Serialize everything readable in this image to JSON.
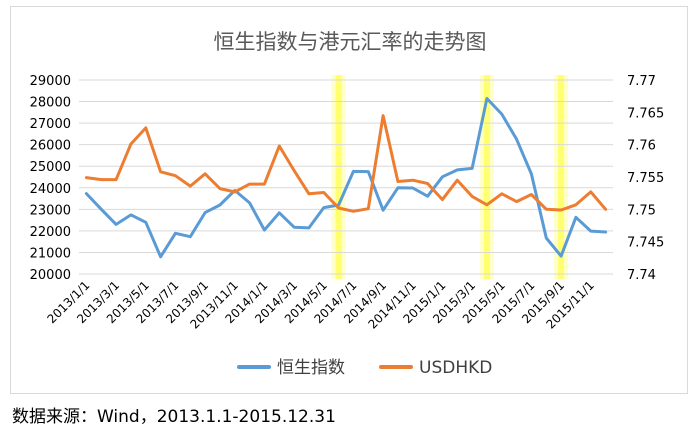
{
  "chart_data": {
    "type": "line",
    "title": "恒生指数与港元汇率的走势图",
    "x_tick_labels": [
      "2013/1/1",
      "2013/3/1",
      "2013/5/1",
      "2013/7/1",
      "2013/9/1",
      "2013/11/1",
      "2014/1/1",
      "2014/3/1",
      "2014/5/1",
      "2014/7/1",
      "2014/9/1",
      "2014/11/1",
      "2015/1/1",
      "2015/3/1",
      "2015/5/1",
      "2015/7/1",
      "2015/9/1",
      "2015/11/1"
    ],
    "x": [
      "2013/1",
      "2013/2",
      "2013/3",
      "2013/4",
      "2013/5",
      "2013/6",
      "2013/7",
      "2013/8",
      "2013/9",
      "2013/10",
      "2013/11",
      "2013/12",
      "2014/1",
      "2014/2",
      "2014/3",
      "2014/4",
      "2014/5",
      "2014/6",
      "2014/7",
      "2014/8",
      "2014/9",
      "2014/10",
      "2014/11",
      "2014/12",
      "2015/1",
      "2015/2",
      "2015/3",
      "2015/4",
      "2015/5",
      "2015/6",
      "2015/7",
      "2015/8",
      "2015/9",
      "2015/10",
      "2015/11",
      "2015/12"
    ],
    "y_left": {
      "min": 20000,
      "max": 29000,
      "step": 1000
    },
    "y_right": {
      "min": 7.74,
      "max": 7.77,
      "step": 0.005
    },
    "series": [
      {
        "name": "恒生指数",
        "axis": "left",
        "color": "#5b9bd5",
        "values": [
          23730,
          23000,
          22300,
          22740,
          22400,
          20800,
          21890,
          21730,
          22850,
          23200,
          23880,
          23300,
          22040,
          22840,
          22170,
          22140,
          23080,
          23200,
          24760,
          24750,
          22960,
          24000,
          23990,
          23610,
          24510,
          24830,
          24900,
          28140,
          27420,
          26250,
          24640,
          21670,
          20830,
          22630,
          21990,
          21950
        ]
      },
      {
        "name": "USDHKD",
        "axis": "right",
        "color": "#ed7d31",
        "values": [
          7.7549,
          7.7546,
          7.7546,
          7.7601,
          7.7626,
          7.7558,
          7.7552,
          7.7536,
          7.7555,
          7.7532,
          7.7527,
          7.7539,
          7.7539,
          7.7598,
          7.756,
          7.7524,
          7.7526,
          7.7502,
          7.7497,
          7.7501,
          7.7645,
          7.7543,
          7.7545,
          7.754,
          7.7515,
          7.7545,
          7.752,
          7.7507,
          7.7524,
          7.7512,
          7.7523,
          7.75,
          7.7499,
          7.7507,
          7.7527,
          7.75
        ]
      }
    ],
    "highlights": [
      "2014/6",
      "2015/4",
      "2015/9"
    ],
    "highlight_color": "#ffff66",
    "legend_position": "bottom",
    "grid": "horizontal"
  },
  "footnote": "数据来源：Wind，2013.1.1-2015.12.31"
}
